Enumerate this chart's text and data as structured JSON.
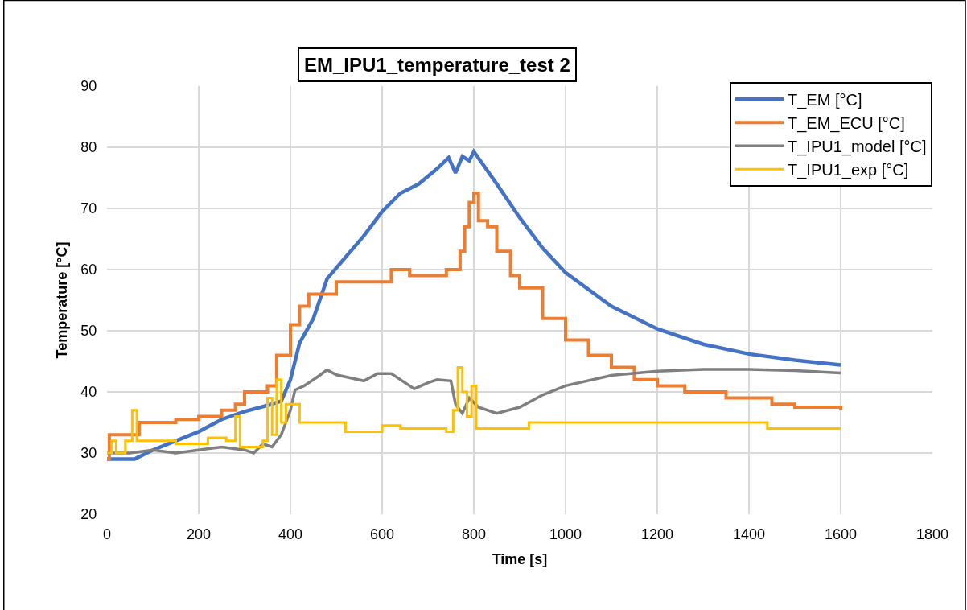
{
  "chart_data": {
    "type": "line",
    "title": "EM_IPU1_temperature_test 2",
    "xlabel": "Time [s]",
    "ylabel": "Temperature [°C]",
    "xlim": [
      0,
      1800
    ],
    "xticks": [
      0,
      200,
      400,
      600,
      800,
      1000,
      1200,
      1400,
      1600,
      1800
    ],
    "ylim": [
      20,
      90
    ],
    "yticks": [
      20,
      30,
      40,
      50,
      60,
      70,
      80,
      90
    ],
    "grid": true,
    "legend": "top right",
    "marker": "none",
    "line_style": "solid",
    "series": [
      {
        "name": "T_EM [°C]",
        "color": "#4472c4",
        "x": [
          0,
          60,
          100,
          150,
          200,
          250,
          300,
          350,
          380,
          400,
          420,
          450,
          480,
          520,
          560,
          600,
          640,
          680,
          720,
          745,
          760,
          775,
          790,
          800,
          850,
          900,
          950,
          1000,
          1100,
          1200,
          1300,
          1400,
          1500,
          1600
        ],
        "values": [
          29,
          29,
          30.5,
          32,
          33.5,
          35.5,
          36.8,
          37.8,
          38.5,
          42,
          48,
          52,
          58.5,
          62,
          65.5,
          69.5,
          72.5,
          74,
          76.5,
          78.3,
          75.8,
          78.5,
          77.8,
          79.3,
          74,
          68.5,
          63.5,
          59.5,
          54,
          50.3,
          47.8,
          46.2,
          45.2,
          44.4
        ]
      },
      {
        "name": "T_EM_ECU [°C]",
        "color": "#ed7d31",
        "type": "step",
        "x": [
          0,
          5,
          50,
          70,
          150,
          200,
          250,
          280,
          300,
          350,
          370,
          400,
          420,
          440,
          500,
          620,
          660,
          740,
          770,
          780,
          790,
          800,
          810,
          830,
          850,
          880,
          900,
          950,
          1000,
          1050,
          1100,
          1150,
          1200,
          1260,
          1350,
          1450,
          1500,
          1600
        ],
        "values": [
          29,
          33,
          33,
          35,
          35.5,
          36,
          37,
          38,
          40,
          41,
          46,
          51,
          54,
          56,
          58,
          60,
          59,
          60,
          63,
          67,
          71,
          72.5,
          68,
          67,
          63,
          59,
          57,
          52,
          48.5,
          46,
          44,
          42,
          41,
          40,
          39,
          38,
          37.5,
          37
        ]
      },
      {
        "name": "T_IPU1_model [°C]",
        "color": "#7f7f7f",
        "x": [
          0,
          50,
          100,
          150,
          200,
          250,
          300,
          320,
          340,
          360,
          380,
          400,
          410,
          430,
          460,
          480,
          500,
          530,
          560,
          590,
          620,
          650,
          670,
          700,
          720,
          750,
          760,
          775,
          790,
          810,
          850,
          900,
          950,
          1000,
          1100,
          1200,
          1300,
          1400,
          1500,
          1600
        ],
        "values": [
          30,
          30,
          30.5,
          30,
          30.5,
          31,
          30.5,
          30,
          31.5,
          31,
          33,
          37,
          40.3,
          41,
          42.5,
          43.6,
          42.8,
          42.3,
          41.8,
          43,
          43,
          41.5,
          40.5,
          41.5,
          42,
          41.8,
          38,
          36.5,
          39,
          37.5,
          36.5,
          37.5,
          39.5,
          41,
          42.7,
          43.4,
          43.7,
          43.7,
          43.5,
          43.1
        ]
      },
      {
        "name": "T_IPU1_exp [°C]",
        "color": "#ffc000",
        "type": "step",
        "x": [
          0,
          10,
          20,
          40,
          55,
          65,
          100,
          150,
          220,
          260,
          280,
          290,
          340,
          350,
          360,
          370,
          380,
          390,
          420,
          500,
          520,
          600,
          640,
          740,
          755,
          765,
          775,
          785,
          795,
          805,
          920,
          1440,
          1600
        ],
        "values": [
          30,
          32,
          30,
          32,
          37,
          32,
          32,
          31.5,
          32.5,
          32,
          36,
          31,
          32,
          39,
          33,
          42,
          35,
          38,
          35,
          35,
          33.5,
          34.5,
          34,
          33.5,
          37,
          44,
          40,
          36,
          41,
          34,
          35,
          34,
          34
        ]
      }
    ]
  }
}
